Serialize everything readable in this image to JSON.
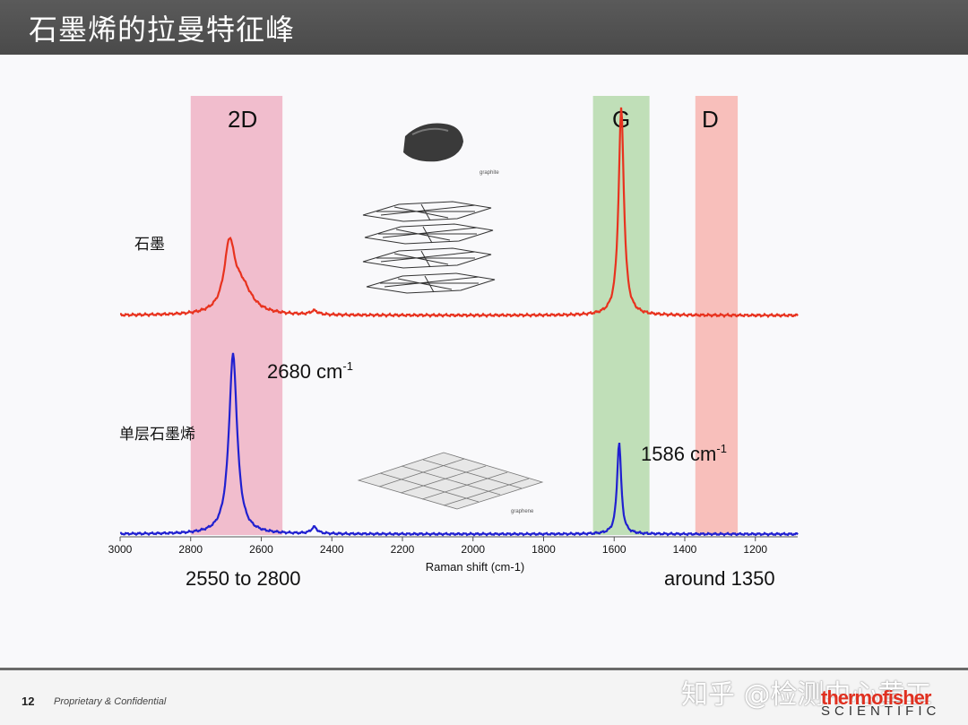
{
  "slide": {
    "title": "石墨烯的拉曼特征峰",
    "page_number": "12",
    "footer_text": "Proprietary & Confidential",
    "watermark": "知乎 @检测中心黄工",
    "logo_top": "thermofisher",
    "logo_bottom": "SCIENTIFIC"
  },
  "annotations": {
    "band_2d": "2D",
    "band_g": "G",
    "band_d": "D",
    "label_graphite": "石墨",
    "label_graphene": "单层石墨烯",
    "peak_2680": "2680 cm",
    "peak_1586": "1586 cm",
    "superscript": "-1",
    "range_2d": "2550 to 2800",
    "range_d": "around 1350",
    "graphite_caption": "graphite",
    "graphene_caption": "graphene"
  },
  "chart_data": {
    "type": "line",
    "xlabel": "Raman shift (cm-1)",
    "ylabel": "",
    "xlim": [
      3000,
      1080
    ],
    "x_ticks": [
      3000,
      2800,
      2600,
      2400,
      2200,
      2000,
      1800,
      1600,
      1400,
      1200
    ],
    "bands": [
      {
        "name": "2D",
        "from": 2800,
        "to": 2540,
        "color": "#f0b6c8"
      },
      {
        "name": "G",
        "from": 1660,
        "to": 1500,
        "color": "#b9dcb0"
      },
      {
        "name": "D",
        "from": 1370,
        "to": 1250,
        "color": "#f7b8b4"
      }
    ],
    "series": [
      {
        "name": "石墨",
        "color": "#e8321e",
        "baseline": 0.0,
        "peaks": [
          {
            "center": 2690,
            "height": 0.25,
            "width": 18
          },
          {
            "center": 2655,
            "height": 0.1,
            "width": 35
          },
          {
            "center": 2450,
            "height": 0.015,
            "width": 12
          },
          {
            "center": 1580,
            "height": 0.8,
            "width": 9
          }
        ]
      },
      {
        "name": "单层石墨烯",
        "color": "#2020d0",
        "baseline": 0.0,
        "peaks": [
          {
            "center": 2680,
            "height": 0.82,
            "width": 14
          },
          {
            "center": 2450,
            "height": 0.03,
            "width": 10
          },
          {
            "center": 1586,
            "height": 0.42,
            "width": 7
          }
        ]
      }
    ]
  }
}
